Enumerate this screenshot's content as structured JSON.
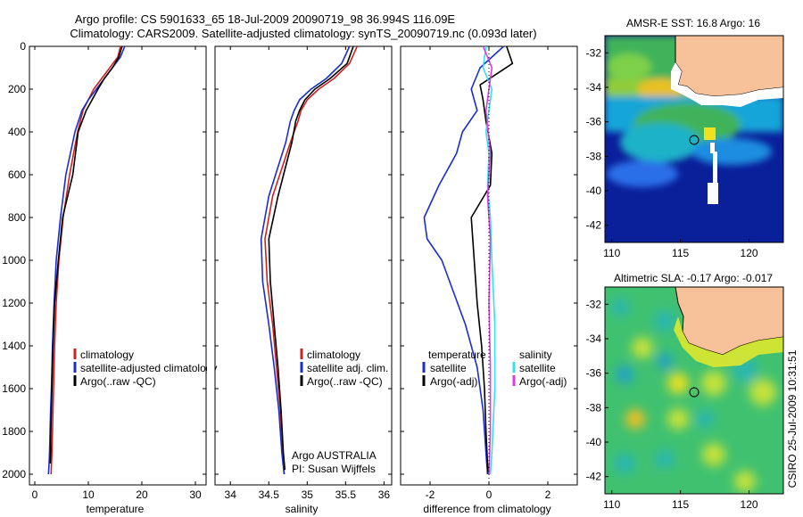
{
  "title": {
    "line1": "Argo profile: CS 5901633_65 18-Jul-2009 20090719_98 36.994S 116.09E",
    "line2": "Climatology: CARS2009. Satellite-adjusted climatology: synTS_20090719.nc (0.093d later)"
  },
  "stamp": "CSIRO 25-Jul-2009 10:31:51",
  "colors": {
    "black": "#000000",
    "red": "#cc2222",
    "blue": "#1a2ecc",
    "cyan": "#33e0ee",
    "magenta": "#e03be0",
    "land": "#f7c19a"
  },
  "chart_data": [
    {
      "type": "line",
      "xlabel": "temperature",
      "ylabel": "",
      "xlim": [
        -1,
        32
      ],
      "ylim": [
        2050,
        0
      ],
      "xticks": [
        0,
        10,
        20,
        30
      ],
      "yticks": [
        0,
        200,
        400,
        600,
        800,
        1000,
        1200,
        1400,
        1600,
        1800,
        2000
      ],
      "legend": [
        "climatology",
        "satellite-adjusted climatology",
        "Argo(..raw -QC)"
      ],
      "series": [
        {
          "name": "climatology",
          "color": "red",
          "x": [
            16,
            15.5,
            14,
            12.5,
            11,
            10,
            9,
            8,
            6.5,
            5.3,
            4.5,
            4,
            3.7,
            3.5,
            3.4,
            3.3,
            3.2,
            3.1,
            3.05
          ],
          "y": [
            0,
            50,
            100,
            150,
            200,
            250,
            300,
            400,
            600,
            800,
            1000,
            1200,
            1400,
            1600,
            1700,
            1800,
            1900,
            1960,
            2000
          ]
        },
        {
          "name": "satellite-adjusted climatology",
          "color": "blue",
          "x": [
            16.8,
            16,
            14.5,
            13,
            11.5,
            10,
            8.8,
            7.5,
            5.8,
            4.8,
            4,
            3.6,
            3.3,
            3.1,
            2.95,
            2.85,
            2.75,
            2.65,
            2.55
          ],
          "y": [
            0,
            50,
            100,
            150,
            200,
            250,
            300,
            400,
            600,
            800,
            1000,
            1200,
            1400,
            1600,
            1700,
            1800,
            1900,
            1960,
            2000
          ]
        },
        {
          "name": "Argo(..raw -QC)",
          "color": "black",
          "x": [
            16.3,
            15.7,
            14.5,
            13,
            11.8,
            10.7,
            9.6,
            8.1,
            7.1,
            5.2,
            4.4,
            3.7,
            3.4,
            3.2,
            3.1,
            3,
            2.95,
            2.9
          ],
          "y": [
            0,
            50,
            100,
            150,
            200,
            250,
            300,
            400,
            600,
            800,
            1000,
            1200,
            1400,
            1600,
            1700,
            1800,
            1900,
            1950
          ]
        }
      ]
    },
    {
      "type": "line",
      "xlabel": "salinity",
      "xlim": [
        33.8,
        36.1
      ],
      "ylim": [
        2050,
        0
      ],
      "xticks": [
        34,
        34.5,
        35,
        35.5,
        36
      ],
      "legend": [
        "climatology",
        "satellite adj. clim.",
        "Argo(..raw -QC)"
      ],
      "annotation": [
        "Argo AUSTRALIA",
        "PI: Susan Wijffels"
      ],
      "series": [
        {
          "name": "climatology",
          "color": "red",
          "x": [
            35.65,
            35.55,
            35.35,
            35.15,
            35,
            34.92,
            34.88,
            34.78,
            34.55,
            34.45,
            34.48,
            34.55,
            34.6,
            34.65,
            34.68,
            34.7
          ],
          "y": [
            0,
            80,
            150,
            200,
            250,
            300,
            350,
            450,
            700,
            900,
            1100,
            1300,
            1500,
            1700,
            1900,
            2000
          ]
        },
        {
          "name": "satellite adj. clim.",
          "color": "blue",
          "x": [
            35.55,
            35.45,
            35.25,
            35.05,
            34.9,
            34.83,
            34.78,
            34.72,
            34.5,
            34.4,
            34.42,
            34.5,
            34.57,
            34.63,
            34.67,
            34.7
          ],
          "y": [
            0,
            80,
            150,
            200,
            250,
            300,
            350,
            450,
            700,
            900,
            1100,
            1300,
            1500,
            1700,
            1900,
            2000
          ]
        },
        {
          "name": "Argo(..raw -QC)",
          "color": "black",
          "x": [
            35.6,
            35.52,
            35.3,
            35.1,
            34.97,
            34.9,
            34.85,
            34.8,
            34.62,
            34.5,
            34.52,
            34.57,
            34.62,
            34.66,
            34.69,
            34.71
          ],
          "y": [
            0,
            80,
            150,
            200,
            250,
            300,
            350,
            450,
            700,
            900,
            1100,
            1300,
            1500,
            1700,
            1900,
            1980
          ]
        }
      ]
    },
    {
      "type": "line",
      "xlabel": "difference from climatology",
      "xlim": [
        -3,
        3
      ],
      "ylim": [
        2050,
        0
      ],
      "xticks": [
        -2,
        0,
        2
      ],
      "legend": [
        "temperature",
        "satellite",
        "Argo(-adj)",
        "salinity",
        "satellite",
        "Argo(-adj)"
      ],
      "series": [
        {
          "name": "temperature satellite",
          "color": "blue",
          "x": [
            0.5,
            -0.3,
            -0.6,
            -0.4,
            -0.9,
            -1.1,
            -1.7,
            -2.2,
            -2.1,
            -1.6,
            -1.2,
            -0.8,
            -0.4,
            -0.2,
            -0.1,
            -0.05
          ],
          "y": [
            0,
            100,
            200,
            300,
            400,
            500,
            650,
            800,
            900,
            1000,
            1150,
            1300,
            1500,
            1700,
            1900,
            2000
          ]
        },
        {
          "name": "temperature Argo(-adj)",
          "color": "black",
          "x": [
            0.6,
            0.8,
            -0.3,
            -0.2,
            -0.1,
            0.1,
            0.05,
            -0.6,
            -0.5,
            -0.4,
            -0.25,
            -0.15,
            -0.1,
            -0.05,
            -0.02
          ],
          "y": [
            0,
            80,
            180,
            250,
            350,
            500,
            650,
            800,
            1000,
            1200,
            1400,
            1600,
            1800,
            1950,
            2000
          ]
        },
        {
          "name": "salinity satellite",
          "color": "cyan",
          "x": [
            -0.1,
            -0.2,
            0.1,
            0,
            -0.1,
            0,
            -0.05,
            0.05,
            0.1,
            0.2,
            0.2,
            0.1,
            0.05
          ],
          "y": [
            0,
            100,
            200,
            300,
            400,
            500,
            650,
            800,
            1000,
            1300,
            1600,
            1900,
            2000
          ]
        },
        {
          "name": "salinity Argo(-adj)",
          "color": "magenta",
          "x": [
            -0.2,
            0.1,
            0,
            -0.1,
            0.05,
            -0.05,
            0.05,
            0,
            0.05,
            0.05,
            0
          ],
          "y": [
            0,
            100,
            200,
            300,
            500,
            700,
            900,
            1200,
            1500,
            1800,
            2000
          ]
        }
      ]
    },
    {
      "type": "heatmap",
      "title": "AMSR-E SST: 16.8 Argo: 16",
      "xlim": [
        109.5,
        122.5
      ],
      "ylim": [
        -43,
        -31
      ],
      "xticks": [
        110,
        115,
        120
      ],
      "yticks": [
        -32,
        -34,
        -36,
        -38,
        -40,
        -42
      ],
      "argo_position": [
        116.09,
        -36.994
      ]
    },
    {
      "type": "heatmap",
      "title": "Altimetric SLA: -0.17 Argo: -0.017",
      "xlim": [
        109.5,
        122.5
      ],
      "ylim": [
        -43,
        -31
      ],
      "xticks": [
        110,
        115,
        120
      ],
      "yticks": [
        -32,
        -34,
        -36,
        -38,
        -40,
        -42
      ],
      "argo_position": [
        116.09,
        -36.994
      ]
    }
  ]
}
